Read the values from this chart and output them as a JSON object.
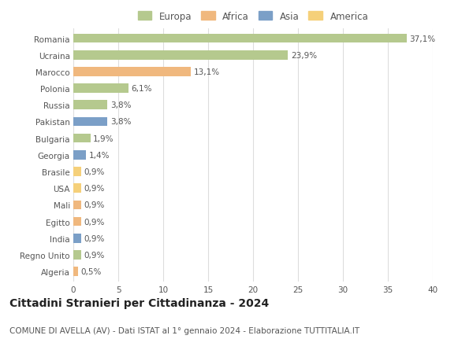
{
  "countries": [
    "Romania",
    "Ucraina",
    "Marocco",
    "Polonia",
    "Russia",
    "Pakistan",
    "Bulgaria",
    "Georgia",
    "Brasile",
    "USA",
    "Mali",
    "Egitto",
    "India",
    "Regno Unito",
    "Algeria"
  ],
  "values": [
    37.1,
    23.9,
    13.1,
    6.1,
    3.8,
    3.8,
    1.9,
    1.4,
    0.9,
    0.9,
    0.9,
    0.9,
    0.9,
    0.9,
    0.5
  ],
  "labels": [
    "37,1%",
    "23,9%",
    "13,1%",
    "6,1%",
    "3,8%",
    "3,8%",
    "1,9%",
    "1,4%",
    "0,9%",
    "0,9%",
    "0,9%",
    "0,9%",
    "0,9%",
    "0,9%",
    "0,5%"
  ],
  "continents": [
    "Europa",
    "Europa",
    "Africa",
    "Europa",
    "Europa",
    "Asia",
    "Europa",
    "Asia",
    "America",
    "America",
    "Africa",
    "Africa",
    "Asia",
    "Europa",
    "Africa"
  ],
  "continent_colors": {
    "Europa": "#b5c98e",
    "Africa": "#f0b87e",
    "Asia": "#7b9fc7",
    "America": "#f5d07a"
  },
  "legend_order": [
    "Europa",
    "Africa",
    "Asia",
    "America"
  ],
  "title": "Cittadini Stranieri per Cittadinanza - 2024",
  "subtitle": "COMUNE DI AVELLA (AV) - Dati ISTAT al 1° gennaio 2024 - Elaborazione TUTTITALIA.IT",
  "xlim": [
    0,
    40
  ],
  "xticks": [
    0,
    5,
    10,
    15,
    20,
    25,
    30,
    35,
    40
  ],
  "background_color": "#ffffff",
  "grid_color": "#dddddd",
  "title_fontsize": 10,
  "subtitle_fontsize": 7.5,
  "label_fontsize": 7.5,
  "tick_fontsize": 7.5,
  "legend_fontsize": 8.5,
  "bar_height": 0.55
}
